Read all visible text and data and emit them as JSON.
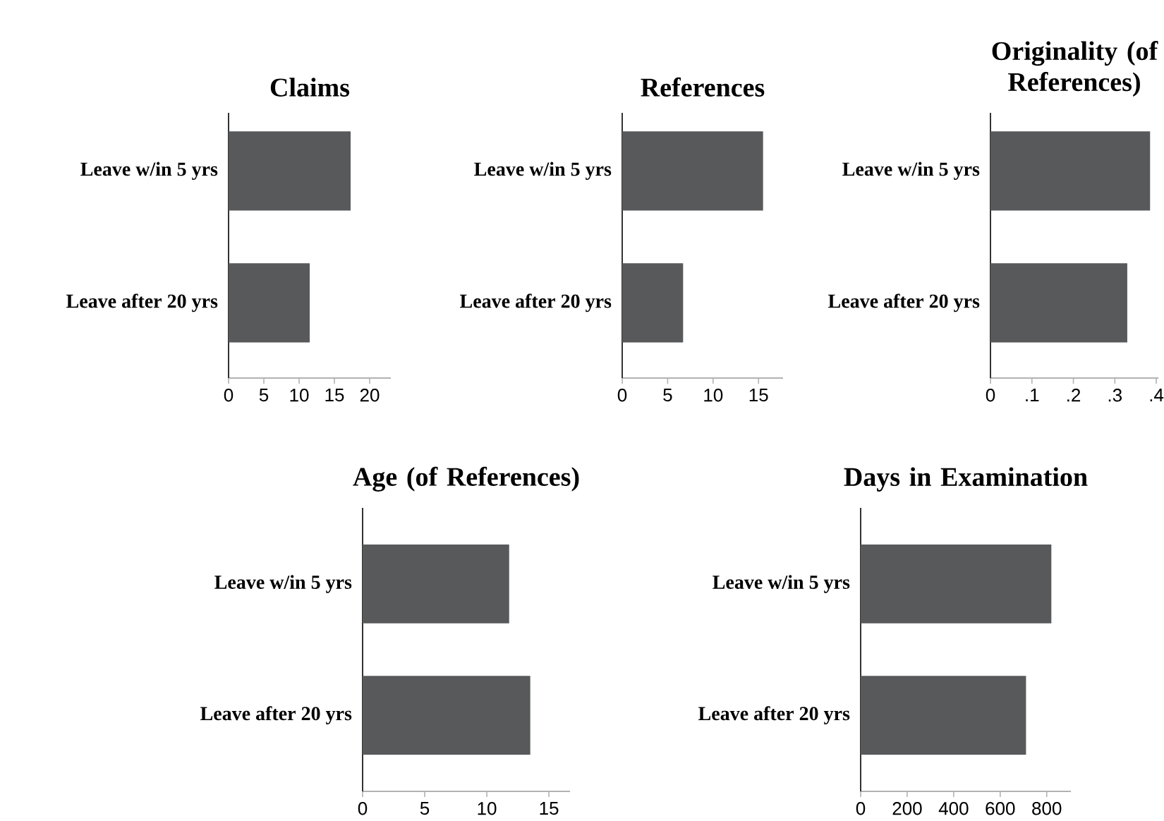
{
  "chart_data": [
    {
      "type": "bar",
      "orientation": "horizontal",
      "title": "Claims",
      "categories": [
        "Leave w/in 5 yrs",
        "Leave after 20 yrs"
      ],
      "values": [
        17.3,
        11.5
      ],
      "color": "#58595b",
      "xlim": [
        0,
        23
      ],
      "xticks": [
        0,
        5,
        10,
        15,
        20
      ]
    },
    {
      "type": "bar",
      "orientation": "horizontal",
      "title": "References",
      "categories": [
        "Leave w/in 5 yrs",
        "Leave after 20 yrs"
      ],
      "values": [
        15.5,
        6.7
      ],
      "color": "#58595b",
      "xlim": [
        0,
        17.7
      ],
      "xticks": [
        0,
        5,
        10,
        15
      ]
    },
    {
      "type": "bar",
      "orientation": "horizontal",
      "title": "Originality (of References)",
      "categories": [
        "Leave w/in 5 yrs",
        "Leave after 20 yrs"
      ],
      "values": [
        0.385,
        0.33
      ],
      "color": "#58595b",
      "xlim": [
        0,
        0.405
      ],
      "xticks": [
        0,
        {
          "value": 0.1,
          "label": ".1"
        },
        {
          "value": 0.2,
          "label": ".2"
        },
        {
          "value": 0.3,
          "label": ".3"
        },
        {
          "value": 0.4,
          "label": ".4"
        }
      ]
    },
    {
      "type": "bar",
      "orientation": "horizontal",
      "title": "Age (of References)",
      "categories": [
        "Leave w/in 5 yrs",
        "Leave after 20 yrs"
      ],
      "values": [
        11.8,
        13.5
      ],
      "color": "#58595b",
      "xlim": [
        0,
        16.7
      ],
      "xticks": [
        0,
        5,
        10,
        15
      ]
    },
    {
      "type": "bar",
      "orientation": "horizontal",
      "title": "Days in Examination",
      "categories": [
        "Leave w/in 5 yrs",
        "Leave after 20 yrs"
      ],
      "values": [
        820,
        711
      ],
      "color": "#58595b",
      "xlim": [
        0,
        904
      ],
      "xticks": [
        0,
        200,
        400,
        600,
        800
      ]
    }
  ]
}
